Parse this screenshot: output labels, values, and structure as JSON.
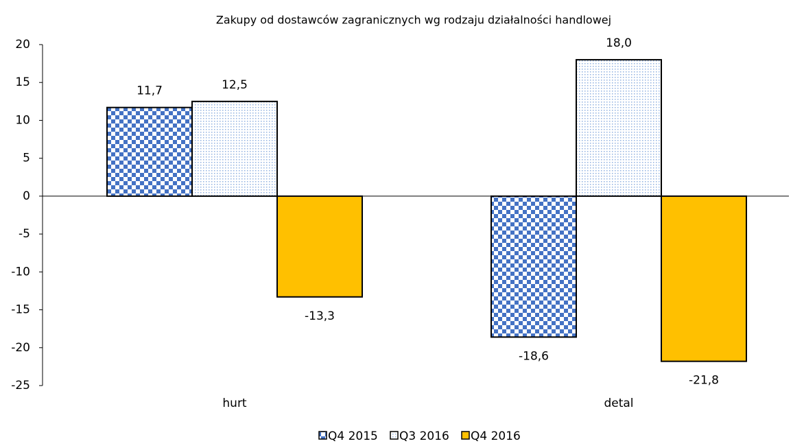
{
  "chart_data": {
    "type": "bar",
    "title": "Zakupy od dostawców zagranicznych wg rodzaju działalności handlowej",
    "categories": [
      "hurt",
      "detal"
    ],
    "series": [
      {
        "name": "Q4 2015",
        "color": "#4472c4",
        "pattern": "checker",
        "values": [
          11.7,
          -18.6
        ],
        "value_labels": [
          "11,7",
          "-18,6"
        ]
      },
      {
        "name": "Q3 2016",
        "color": "#8fb0e0",
        "pattern": "dots",
        "values": [
          12.5,
          18.0
        ],
        "value_labels": [
          "12,5",
          "18,0"
        ]
      },
      {
        "name": "Q4 2016",
        "color": "#ffc000",
        "pattern": "solid",
        "values": [
          -13.3,
          -21.8
        ],
        "value_labels": [
          "-13,3",
          "-21,8"
        ]
      }
    ],
    "ylim": [
      -25,
      20
    ],
    "yticks": [
      20,
      15,
      10,
      5,
      0,
      -5,
      -10,
      -15,
      -20,
      -25
    ]
  }
}
